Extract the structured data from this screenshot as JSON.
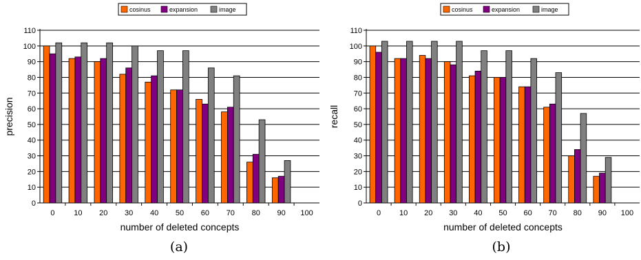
{
  "chart_data": [
    {
      "type": "bar",
      "caption": "(a)",
      "xlabel": "number of deleted concepts",
      "ylabel": "precision",
      "ylim": [
        0,
        110
      ],
      "yticks": [
        0,
        10,
        20,
        30,
        40,
        50,
        60,
        70,
        80,
        90,
        100,
        110
      ],
      "grid": true,
      "legend_position": "top-center",
      "categories": [
        "0",
        "10",
        "20",
        "30",
        "40",
        "50",
        "60",
        "70",
        "80",
        "90",
        "100"
      ],
      "series": [
        {
          "name": "cosinus",
          "color": "#ff6600",
          "values": [
            100,
            92,
            90,
            82,
            77,
            72,
            66,
            58,
            26,
            16,
            0
          ]
        },
        {
          "name": "expansion",
          "color": "#800080",
          "values": [
            95,
            93,
            92,
            86,
            81,
            72,
            63,
            61,
            31,
            17,
            0
          ]
        },
        {
          "name": "image",
          "color": "#808080",
          "values": [
            102,
            102,
            102,
            100,
            97,
            97,
            86,
            81,
            53,
            27,
            0
          ]
        }
      ]
    },
    {
      "type": "bar",
      "caption": "(b)",
      "xlabel": "number of deleted concepts",
      "ylabel": "recall",
      "ylim": [
        0,
        110
      ],
      "yticks": [
        0,
        10,
        20,
        30,
        40,
        50,
        60,
        70,
        80,
        90,
        100,
        110
      ],
      "grid": true,
      "legend_position": "top-center",
      "categories": [
        "0",
        "10",
        "20",
        "30",
        "40",
        "50",
        "60",
        "70",
        "80",
        "90",
        "100"
      ],
      "series": [
        {
          "name": "cosinus",
          "color": "#ff6600",
          "values": [
            100,
            92,
            94,
            90,
            81,
            80,
            74,
            61,
            30,
            17,
            0
          ]
        },
        {
          "name": "expansion",
          "color": "#800080",
          "values": [
            96,
            92,
            92,
            88,
            84,
            80,
            74,
            63,
            34,
            19,
            0
          ]
        },
        {
          "name": "image",
          "color": "#808080",
          "values": [
            103,
            103,
            103,
            103,
            97,
            97,
            92,
            83,
            57,
            29,
            0
          ]
        }
      ]
    }
  ]
}
